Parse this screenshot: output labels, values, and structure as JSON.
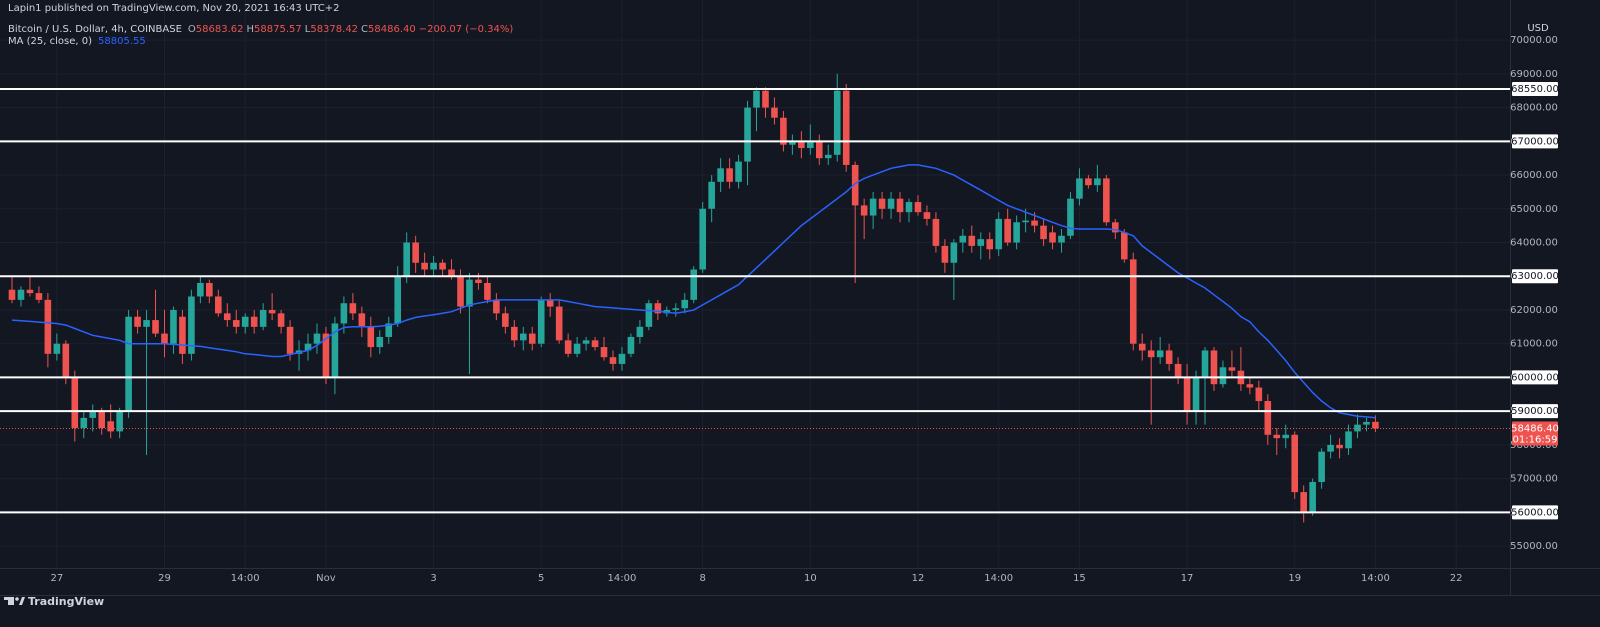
{
  "chart_data": {
    "type": "candlestick",
    "header": "Lapin1 published on TradingView.com, Nov 20, 2021 16:43 UTC+2",
    "symbol": "Bitcoin / U.S. Dollar, 4h, COINBASE",
    "ohlc_legend": [
      {
        "key": "O",
        "value": "58683.62"
      },
      {
        "key": "H",
        "value": "58875.57"
      },
      {
        "key": "L",
        "value": "58378.42"
      },
      {
        "key": "C",
        "value": "58486.40"
      }
    ],
    "change": "−200.07 (−0.34%)",
    "currency": "USD",
    "footer": "TradingView",
    "up_color": "#26a69a",
    "down_color": "#ef5350",
    "categories": [
      null,
      null,
      null,
      null,
      null,
      "27",
      null,
      null,
      null,
      null,
      null,
      null,
      null,
      null,
      null,
      null,
      null,
      "29",
      null,
      null,
      null,
      null,
      null,
      null,
      null,
      null,
      "14:00",
      null,
      null,
      null,
      null,
      null,
      null,
      null,
      null,
      "Nov",
      null,
      null,
      null,
      null,
      null,
      null,
      null,
      null,
      null,
      null,
      null,
      "3",
      null,
      null,
      null,
      null,
      null,
      null,
      null,
      null,
      null,
      null,
      null,
      "5",
      null,
      null,
      null,
      null,
      null,
      null,
      null,
      null,
      "14:00",
      null,
      null,
      null,
      null,
      null,
      null,
      null,
      null,
      "8",
      null,
      null,
      null,
      null,
      null,
      null,
      null,
      null,
      null,
      null,
      null,
      "10",
      null,
      null,
      null,
      null,
      null,
      null,
      null,
      null,
      null,
      null,
      null,
      "12",
      null,
      null,
      null,
      null,
      null,
      null,
      null,
      null,
      "14:00",
      null,
      null,
      null,
      null,
      null,
      null,
      null,
      null,
      "15",
      null,
      null,
      null,
      null,
      null,
      null,
      null,
      null,
      null,
      null,
      null,
      "17",
      null,
      null,
      null,
      null,
      null,
      null,
      null,
      null,
      null,
      null,
      null,
      "19",
      null,
      null,
      null,
      null,
      null,
      null,
      null,
      null,
      "14:00",
      null,
      null,
      null,
      null,
      null,
      null,
      null,
      null,
      "22"
    ],
    "open": [
      62600,
      62300,
      62600,
      62500,
      62300,
      60700,
      61000,
      60000,
      58500,
      58800,
      59000,
      58700,
      58400,
      59000,
      61800,
      61500,
      61700,
      61300,
      61000,
      61800,
      60700,
      62400,
      62800,
      62400,
      61900,
      61700,
      61500,
      61800,
      61500,
      62000,
      61900,
      61500,
      60700,
      60800,
      61000,
      61300,
      60000,
      61600,
      62200,
      61900,
      61500,
      60900,
      61200,
      61600,
      63000,
      64000,
      63400,
      63200,
      63400,
      63200,
      63000,
      62100,
      62900,
      62800,
      62300,
      61900,
      61500,
      61100,
      61300,
      61000,
      62300,
      62100,
      61100,
      60700,
      61000,
      61100,
      60900,
      60600,
      60400,
      60700,
      61200,
      61500,
      62200,
      61900,
      62000,
      62050,
      62300,
      63200,
      65000,
      65800,
      66200,
      65800,
      66400,
      68000,
      68500,
      68000,
      67700,
      66900,
      67000,
      66800,
      67000,
      66500,
      66600,
      68500,
      66300,
      65100,
      64800,
      65300,
      65000,
      65300,
      64900,
      65200,
      64900,
      64700,
      63900,
      63400,
      64000,
      64200,
      63900,
      64100,
      63800,
      64700,
      64000,
      64600,
      64650,
      64500,
      64300,
      64000,
      64200,
      65300,
      65900,
      65700,
      65900,
      64600,
      64300,
      63500,
      61000,
      60800,
      60600,
      60800,
      60400,
      60000,
      59000,
      60000,
      60800,
      59800,
      60300,
      60200,
      59800,
      59700,
      59300,
      58300,
      58200,
      58300,
      56600,
      56000,
      56900,
      57800,
      58000,
      57900,
      58400,
      58600,
      58683.62,
      null,
      null,
      null,
      null,
      null,
      null,
      null,
      null,
      null
    ],
    "high": [
      63000,
      62700,
      63000,
      62700,
      62500,
      61300,
      61100,
      60200,
      59000,
      59200,
      59100,
      59200,
      59100,
      62000,
      62000,
      62000,
      62600,
      62000,
      62100,
      62000,
      62600,
      63000,
      62900,
      62600,
      62200,
      62000,
      61900,
      62000,
      62200,
      62500,
      62000,
      61700,
      61100,
      61300,
      61600,
      61500,
      61800,
      62400,
      62500,
      62100,
      61800,
      61400,
      61800,
      63300,
      64300,
      64200,
      63700,
      63600,
      63500,
      63500,
      63200,
      63100,
      63100,
      63000,
      62500,
      62100,
      61700,
      61500,
      61500,
      62400,
      62500,
      62300,
      61300,
      61200,
      61200,
      61200,
      61200,
      60800,
      60900,
      61300,
      61700,
      62300,
      62300,
      62100,
      62200,
      62500,
      63300,
      65200,
      66000,
      66500,
      66500,
      66600,
      68200,
      68600,
      68600,
      68300,
      67900,
      67200,
      67300,
      67500,
      67200,
      66900,
      69000,
      68700,
      66400,
      65300,
      65500,
      65500,
      65500,
      65500,
      65300,
      65400,
      65100,
      64900,
      64100,
      64100,
      64400,
      64500,
      64300,
      64300,
      64900,
      65000,
      64800,
      65000,
      64900,
      64700,
      64500,
      64400,
      65500,
      66200,
      66000,
      66300,
      66000,
      64700,
      64400,
      63700,
      61300,
      61100,
      61200,
      61000,
      60600,
      60400,
      60200,
      60900,
      60900,
      60500,
      60800,
      60900,
      60000,
      59900,
      59500,
      58500,
      58600,
      58400,
      56800,
      57000,
      57900,
      58300,
      58200,
      58600,
      58900,
      58800,
      58875.57,
      null,
      null,
      null,
      null,
      null,
      null,
      null,
      null,
      null
    ],
    "low": [
      62200,
      62100,
      62400,
      62200,
      60300,
      60500,
      59800,
      58100,
      58200,
      58400,
      58300,
      58200,
      58200,
      58800,
      61300,
      57700,
      61200,
      60600,
      60700,
      60400,
      60500,
      62200,
      62200,
      61800,
      61500,
      61300,
      61300,
      61300,
      61400,
      61700,
      61300,
      60500,
      60200,
      60500,
      60700,
      59800,
      59500,
      61300,
      61700,
      61200,
      60600,
      60700,
      61000,
      61500,
      62800,
      63100,
      63000,
      63000,
      63000,
      62900,
      61900,
      60100,
      62600,
      62200,
      61700,
      61300,
      60900,
      60800,
      60800,
      60900,
      61800,
      61000,
      60600,
      60600,
      60800,
      60800,
      60500,
      60200,
      60200,
      60600,
      61000,
      61400,
      61700,
      61800,
      61800,
      61900,
      62200,
      63100,
      64600,
      65500,
      65600,
      65600,
      65700,
      67300,
      67700,
      67500,
      66700,
      66600,
      66500,
      66600,
      66300,
      66300,
      66400,
      66100,
      62800,
      64100,
      64400,
      64700,
      64700,
      64600,
      64600,
      64800,
      64500,
      63700,
      63100,
      62300,
      63700,
      63700,
      63500,
      63500,
      63600,
      63900,
      63800,
      64300,
      64300,
      63900,
      63800,
      63700,
      64100,
      65100,
      65600,
      65500,
      64500,
      64100,
      63400,
      60800,
      60500,
      58600,
      60400,
      60200,
      59800,
      58600,
      58600,
      58600,
      59600,
      59700,
      60000,
      59600,
      59500,
      59000,
      58000,
      57700,
      57900,
      56400,
      55700,
      55900,
      56700,
      57600,
      57600,
      57700,
      58200,
      58400,
      58378.42,
      null,
      null,
      null,
      null,
      null,
      null,
      null,
      null,
      null
    ],
    "close": [
      62300,
      62600,
      62500,
      62300,
      60700,
      61000,
      60000,
      58500,
      58800,
      59000,
      58500,
      58400,
      59000,
      61800,
      61500,
      61700,
      61300,
      61000,
      62000,
      60700,
      62400,
      62800,
      62400,
      61900,
      61700,
      61500,
      61800,
      61500,
      62000,
      61900,
      61500,
      60700,
      60800,
      61000,
      61300,
      60000,
      61600,
      62200,
      61900,
      61500,
      60900,
      61200,
      61600,
      63000,
      64000,
      63400,
      63200,
      63400,
      63200,
      63000,
      62100,
      62900,
      62800,
      62300,
      61900,
      61500,
      61100,
      61300,
      61000,
      62300,
      62100,
      61100,
      60700,
      61000,
      61100,
      60900,
      60600,
      60400,
      60700,
      61200,
      61500,
      62200,
      61900,
      62000,
      62050,
      62300,
      63200,
      65000,
      65800,
      66200,
      65800,
      66400,
      68000,
      68500,
      68000,
      67700,
      66900,
      67000,
      66800,
      67000,
      66500,
      66600,
      68500,
      66300,
      65100,
      64800,
      65300,
      65000,
      65300,
      64900,
      65200,
      64900,
      64700,
      63900,
      63400,
      64000,
      64200,
      63900,
      64100,
      63800,
      64700,
      64000,
      64600,
      64650,
      64500,
      64100,
      64000,
      64200,
      65300,
      65900,
      65700,
      65900,
      64600,
      64300,
      63500,
      61000,
      60800,
      60600,
      60800,
      60400,
      60000,
      59000,
      60000,
      60800,
      59800,
      60300,
      60200,
      59800,
      59700,
      59300,
      58300,
      58200,
      58300,
      56600,
      56000,
      56900,
      57800,
      58000,
      57900,
      58400,
      58600,
      58680,
      58486.4,
      null,
      null,
      null,
      null,
      null,
      null,
      null,
      null,
      null
    ],
    "ma": {
      "name": "MA (25, close, 0)",
      "value_label": "58805.55",
      "color": "#2962ff",
      "values": [
        61700,
        61680,
        61660,
        61640,
        61620,
        61600,
        61550,
        61450,
        61350,
        61250,
        61200,
        61150,
        61100,
        61000,
        61000,
        61000,
        61000,
        61000,
        60980,
        60960,
        60940,
        60920,
        60880,
        60840,
        60800,
        60760,
        60700,
        60680,
        60650,
        60620,
        60620,
        60680,
        60740,
        60800,
        60950,
        61150,
        61350,
        61480,
        61500,
        61500,
        61500,
        61520,
        61550,
        61600,
        61700,
        61780,
        61820,
        61860,
        61900,
        61950,
        62050,
        62150,
        62200,
        62250,
        62300,
        62300,
        62300,
        62300,
        62300,
        62300,
        62300,
        62300,
        62250,
        62200,
        62150,
        62100,
        62080,
        62060,
        62040,
        62020,
        62000,
        61980,
        61960,
        61930,
        61900,
        61950,
        62000,
        62150,
        62300,
        62450,
        62600,
        62750,
        63000,
        63250,
        63500,
        63750,
        64000,
        64250,
        64500,
        64700,
        64900,
        65100,
        65300,
        65500,
        65750,
        65900,
        66000,
        66100,
        66200,
        66250,
        66300,
        66300,
        66250,
        66200,
        66100,
        66000,
        65850,
        65700,
        65550,
        65400,
        65250,
        65100,
        65000,
        64900,
        64800,
        64700,
        64600,
        64500,
        64420,
        64400,
        64400,
        64400,
        64400,
        64380,
        64300,
        64200,
        63900,
        63700,
        63500,
        63300,
        63100,
        62950,
        62800,
        62650,
        62450,
        62250,
        62050,
        61800,
        61650,
        61350,
        61100,
        60800,
        60500,
        60150,
        59850,
        59550,
        59300,
        59100,
        58950,
        58900,
        58850,
        58830,
        58805.55,
        null,
        null,
        null,
        null,
        null,
        null,
        null,
        null,
        null
      ]
    },
    "hlines": [
      {
        "value": 68550,
        "label": "68550.00"
      },
      {
        "value": 67000,
        "label": "67000.00"
      },
      {
        "value": 63000,
        "label": "63000.00"
      },
      {
        "value": 60000,
        "label": "60000.00"
      },
      {
        "value": 59000,
        "label": "59000.00"
      },
      {
        "value": 56000,
        "label": "56000.00"
      }
    ],
    "hline_color": "#ffffff",
    "price_label": {
      "value": 58486.4,
      "label": "58486.40",
      "countdown": "01:16:59"
    },
    "ylim": [
      54350,
      71190
    ],
    "yticks": [
      {
        "value": 55000,
        "label": "55000.00"
      },
      {
        "value": 56000,
        "label": "56000.00"
      },
      {
        "value": 57000,
        "label": "57000.00"
      },
      {
        "value": 58000,
        "label": "58000.00"
      },
      {
        "value": 59000,
        "label": "59000.00"
      },
      {
        "value": 60000,
        "label": "60000.00"
      },
      {
        "value": 61000,
        "label": "61000.00"
      },
      {
        "value": 62000,
        "label": "62000.00"
      },
      {
        "value": 63000,
        "label": "63000.00"
      },
      {
        "value": 64000,
        "label": "64000.00"
      },
      {
        "value": 65000,
        "label": "65000.00"
      },
      {
        "value": 66000,
        "label": "66000.00"
      },
      {
        "value": 67000,
        "label": "67000.00"
      },
      {
        "value": 68000,
        "label": "68000.00"
      },
      {
        "value": 69000,
        "label": "69000.00"
      },
      {
        "value": 70000,
        "label": "70000.00"
      }
    ],
    "grid": true
  }
}
